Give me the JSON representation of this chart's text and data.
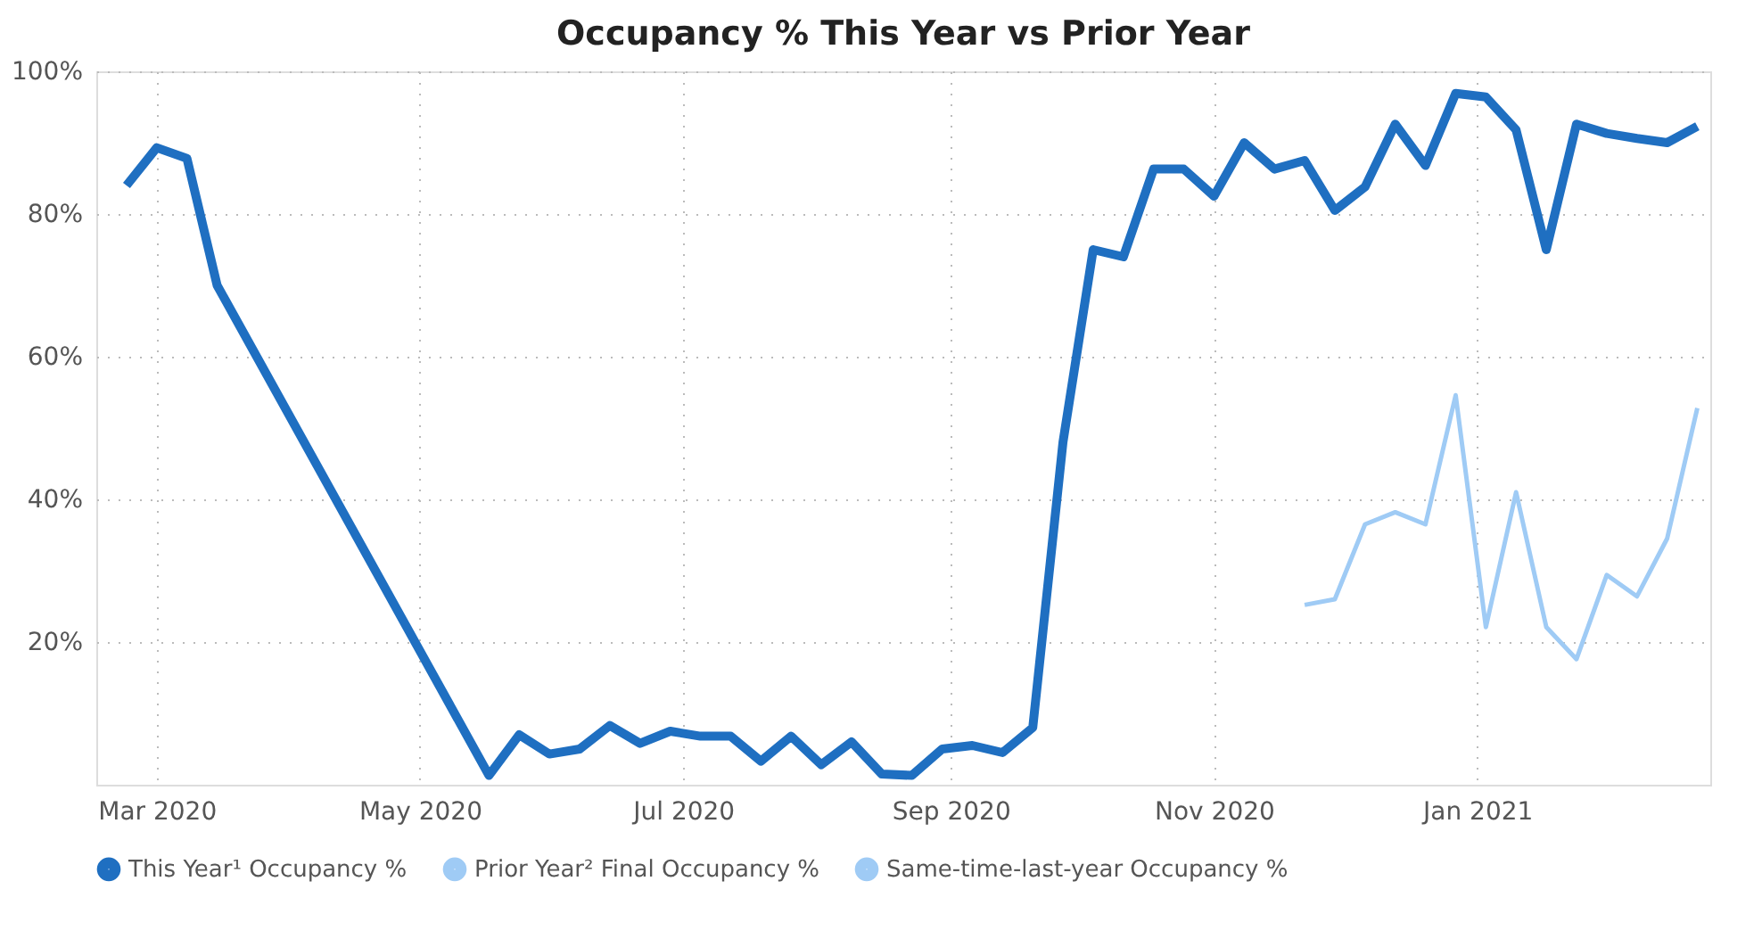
{
  "chart_data": {
    "type": "line",
    "title": "Occupancy % This Year vs Prior Year",
    "xlim": [
      "2020-02-16",
      "2021-02-24"
    ],
    "xticks": [
      {
        "value": "2020-03-01",
        "label": "Mar 2020"
      },
      {
        "value": "2020-05-01",
        "label": "May 2020"
      },
      {
        "value": "2020-07-01",
        "label": "Jul 2020"
      },
      {
        "value": "2020-09-01",
        "label": "Sep 2020"
      },
      {
        "value": "2020-11-01",
        "label": "Nov 2020"
      },
      {
        "value": "2021-01-01",
        "label": "Jan 2021"
      }
    ],
    "ylim": [
      0,
      100
    ],
    "yticks": [
      {
        "value": 20,
        "label": "20%"
      },
      {
        "value": 40,
        "label": "40%"
      },
      {
        "value": 60,
        "label": "60%"
      },
      {
        "value": 80,
        "label": "80%"
      },
      {
        "value": 100,
        "label": "100%"
      }
    ],
    "grid": true,
    "legend": "bottom",
    "series": [
      {
        "name": "This Year¹ Occupancy %",
        "color": "#1f6fc1",
        "x": [
          "2020-02-23",
          "2020-03-01",
          "2020-03-08",
          "2020-03-15",
          "2020-05-17",
          "2020-05-24",
          "2020-05-31",
          "2020-06-07",
          "2020-06-14",
          "2020-06-21",
          "2020-06-28",
          "2020-07-05",
          "2020-07-12",
          "2020-07-19",
          "2020-07-26",
          "2020-08-02",
          "2020-08-09",
          "2020-08-16",
          "2020-08-23",
          "2020-08-30",
          "2020-09-06",
          "2020-09-13",
          "2020-09-20",
          "2020-09-27",
          "2020-10-04",
          "2020-10-11",
          "2020-10-18",
          "2020-10-25",
          "2020-11-01",
          "2020-11-08",
          "2020-11-15",
          "2020-11-22",
          "2020-11-29",
          "2020-12-06",
          "2020-12-13",
          "2020-12-20",
          "2020-12-27",
          "2021-01-03",
          "2021-01-10",
          "2021-01-17",
          "2021-01-24",
          "2021-01-31",
          "2021-02-07",
          "2021-02-14",
          "2021-02-21"
        ],
        "values": [
          84,
          89.3,
          87.8,
          70,
          1.3,
          7,
          4.3,
          5,
          8.3,
          5.8,
          7.5,
          6.8,
          6.8,
          3.3,
          6.8,
          2.8,
          6,
          1.5,
          1.3,
          5,
          5.5,
          4.5,
          8,
          48,
          75,
          74,
          86.3,
          86.3,
          82.5,
          90,
          86.3,
          87.5,
          80.5,
          83.8,
          92.6,
          86.8,
          96.9,
          96.4,
          91.8,
          75,
          92.6,
          91.3,
          90.6,
          90,
          92.3
        ]
      },
      {
        "name": "Prior Year² Final Occupancy %",
        "color": "#9fcbf5"
      },
      {
        "name": "Same-time-last-year Occupancy %",
        "color": "#9fcbf5",
        "x": [
          "2020-11-22",
          "2020-11-29",
          "2020-12-06",
          "2020-12-13",
          "2020-12-20",
          "2020-12-27",
          "2021-01-03",
          "2021-01-10",
          "2021-01-17",
          "2021-01-24",
          "2021-01-31",
          "2021-02-07",
          "2021-02-14",
          "2021-02-21"
        ],
        "values": [
          25.2,
          26,
          36.5,
          38.2,
          36.5,
          54.6,
          22.1,
          41,
          22.1,
          17.6,
          29.4,
          26.4,
          34.5,
          52.8
        ]
      }
    ]
  }
}
